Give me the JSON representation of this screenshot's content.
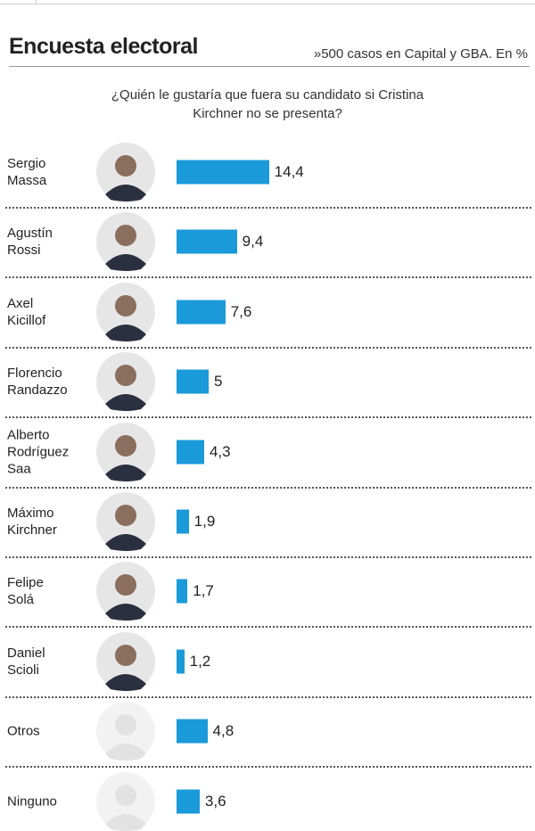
{
  "chart_data": {
    "type": "bar",
    "orientation": "horizontal",
    "title": "Encuesta electoral",
    "note": "»500 casos en Capital y GBA. En %",
    "subtitle": "¿Quién le gustaría que fuera su candidato si Cristina Kirchner no se presenta?",
    "categories": [
      "Sergio Massa",
      "Agustín Rossi",
      "Axel Kicillof",
      "Florencio Randazzo",
      "Alberto Rodríguez Saa",
      "Máximo Kirchner",
      "Felipe Solá",
      "Daniel Scioli",
      "Otros",
      "Ninguno"
    ],
    "values": [
      14.4,
      9.4,
      7.6,
      5,
      4.3,
      1.9,
      1.7,
      1.2,
      4.8,
      3.6
    ],
    "value_labels": [
      "14,4",
      "9,4",
      "7,6",
      "5",
      "4,3",
      "1,9",
      "1,7",
      "1,2",
      "4,8",
      "3,6"
    ],
    "color": "#1a9ad9"
  }
}
